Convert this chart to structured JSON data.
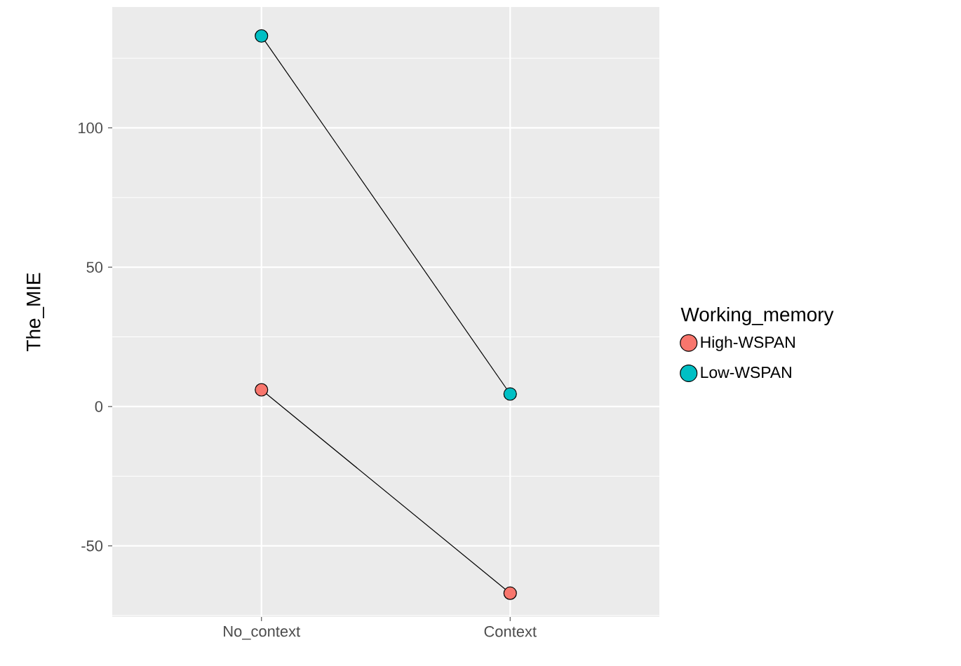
{
  "chart_data": {
    "type": "line",
    "ylabel": "The_MIE",
    "legend_title": "Working_memory",
    "categories": [
      "No_context",
      "Context"
    ],
    "series": [
      {
        "name": "High-WSPAN",
        "color": "#f8766d",
        "values": [
          6,
          -67
        ]
      },
      {
        "name": "Low-WSPAN",
        "color": "#00bfc4",
        "values": [
          133,
          4.5
        ]
      }
    ],
    "ylim": [
      -75.5,
      143.4
    ],
    "yticks": [
      -50,
      0,
      50,
      100
    ],
    "grid": true,
    "legend": "right",
    "marker": "circle",
    "line_style": "solid"
  }
}
